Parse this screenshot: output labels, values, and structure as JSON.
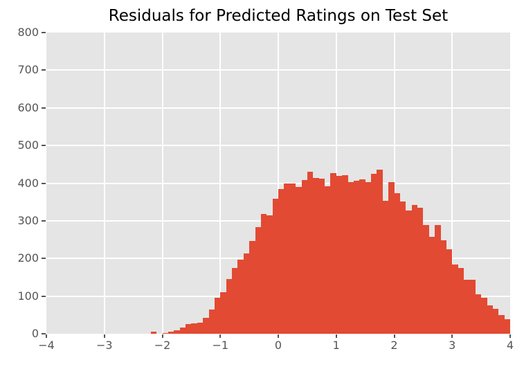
{
  "title": "Residuals for Predicted Ratings on Test Set",
  "colors": {
    "figure_background": "#ffffff",
    "plot_background": "#e5e5e5",
    "grid": "#ffffff",
    "bar": "#e24a33",
    "tick_label": "#555555",
    "tick_mark": "#555555",
    "title_color": "#000000"
  },
  "chart_data": {
    "type": "bar",
    "subtype": "histogram",
    "title": "Residuals for Predicted Ratings on Test Set",
    "xlabel": "",
    "ylabel": "",
    "xlim": [
      -4,
      4
    ],
    "ylim": [
      0,
      800
    ],
    "grid": true,
    "legend": false,
    "style": "ggplot",
    "x_ticks": [
      {
        "value": -4,
        "label": "−4"
      },
      {
        "value": -3,
        "label": "−3"
      },
      {
        "value": -2,
        "label": "−2"
      },
      {
        "value": -1,
        "label": "−1"
      },
      {
        "value": 0,
        "label": "0"
      },
      {
        "value": 1,
        "label": "1"
      },
      {
        "value": 2,
        "label": "2"
      },
      {
        "value": 3,
        "label": "3"
      },
      {
        "value": 4,
        "label": "4"
      }
    ],
    "y_ticks": [
      {
        "value": 0,
        "label": "0"
      },
      {
        "value": 100,
        "label": "100"
      },
      {
        "value": 200,
        "label": "200"
      },
      {
        "value": 300,
        "label": "300"
      },
      {
        "value": 400,
        "label": "400"
      },
      {
        "value": 500,
        "label": "500"
      },
      {
        "value": 600,
        "label": "600"
      },
      {
        "value": 700,
        "label": "700"
      },
      {
        "value": 800,
        "label": "800"
      }
    ],
    "bin_width": 0.1,
    "bin_left_edges": [
      -2.2,
      -2.1,
      -2.0,
      -1.9,
      -1.8,
      -1.7,
      -1.6,
      -1.5,
      -1.4,
      -1.3,
      -1.2,
      -1.1,
      -1.0,
      -0.9,
      -0.8,
      -0.7,
      -0.6,
      -0.5,
      -0.4,
      -0.3,
      -0.2,
      -0.1,
      0.0,
      0.1,
      0.2,
      0.3,
      0.4,
      0.5,
      0.6,
      0.7,
      0.8,
      0.9,
      1.0,
      1.1,
      1.2,
      1.3,
      1.4,
      1.5,
      1.6,
      1.7,
      1.8,
      1.9,
      2.0,
      2.1,
      2.2,
      2.3,
      2.4,
      2.5,
      2.6,
      2.7,
      2.8,
      2.9,
      3.0,
      3.1,
      3.2,
      3.3,
      3.4,
      3.5,
      3.6,
      3.7,
      3.8,
      3.9
    ],
    "values": [
      5,
      0,
      2,
      5,
      10,
      16,
      25,
      28,
      30,
      42,
      64,
      95,
      111,
      145,
      175,
      197,
      213,
      246,
      284,
      318,
      315,
      358,
      385,
      399,
      400,
      390,
      408,
      431,
      413,
      412,
      391,
      426,
      419,
      421,
      402,
      406,
      411,
      402,
      424,
      435,
      354,
      403,
      374,
      351,
      328,
      343,
      334,
      288,
      258,
      288,
      248,
      224,
      184,
      175,
      143,
      143,
      105,
      96,
      75,
      66,
      50,
      39
    ]
  }
}
